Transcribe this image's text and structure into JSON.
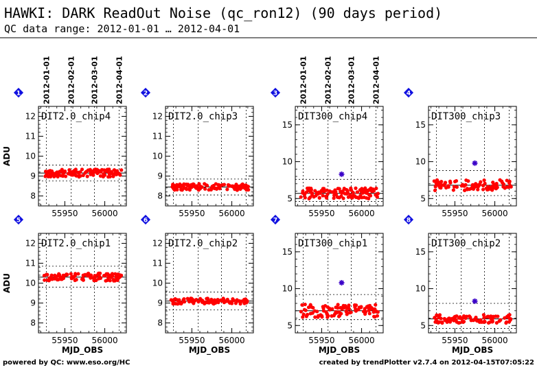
{
  "header": {
    "title": "HAWKI: DARK ReadOut Noise (qc_ron12) (90 days period)",
    "subtitle": "QC data range: 2012-01-01 … 2012-04-01"
  },
  "footer": {
    "left": "powered by QC: www.eso.org/HC",
    "right": "created by trendPlotter v2.7.4 on 2012-04-15T07:05:22"
  },
  "axes": {
    "ylabel": "ADU",
    "xlabel": "MJD_OBS",
    "date_ticks": [
      {
        "mjd": 55927,
        "label": "2012-01-01"
      },
      {
        "mjd": 55958,
        "label": "2012-02-01"
      },
      {
        "mjd": 55987,
        "label": "2012-03-01"
      },
      {
        "mjd": 56018,
        "label": "2012-04-01"
      }
    ],
    "x_ticks": [
      55950,
      56000
    ],
    "xlim": [
      55917,
      56027
    ]
  },
  "colors": {
    "points": "#ff0000",
    "outlier": "#3a00c8",
    "badge": "#1010e0",
    "ink": "#000000"
  },
  "chart_data": [
    {
      "type": "scatter",
      "panel": 1,
      "label": "DIT2.0_chip4",
      "ylim": [
        7.5,
        12.5
      ],
      "y_ticks": [
        8,
        9,
        10,
        11,
        12
      ],
      "median": 9.15,
      "band": [
        8.75,
        9.55
      ],
      "seed": 11,
      "scatter": 0.12,
      "outliers": []
    },
    {
      "type": "scatter",
      "panel": 2,
      "label": "DIT2.0_chip3",
      "ylim": [
        7.5,
        12.5
      ],
      "y_ticks": [
        8,
        9,
        10,
        11,
        12
      ],
      "median": 8.45,
      "band": [
        8.05,
        8.85
      ],
      "seed": 23,
      "scatter": 0.1,
      "outliers": []
    },
    {
      "type": "scatter",
      "panel": 3,
      "label": "DIT300_chip4",
      "ylim": [
        4.0,
        17.5
      ],
      "y_ticks": [
        5,
        10,
        15
      ],
      "median": 5.7,
      "band": [
        4.6,
        7.6
      ],
      "seed": 37,
      "scatter": 0.45,
      "outliers": [
        {
          "x": 55975,
          "y": 8.3
        }
      ]
    },
    {
      "type": "scatter",
      "panel": 4,
      "label": "DIT300_chip3",
      "ylim": [
        4.0,
        17.5
      ],
      "y_ticks": [
        5,
        10,
        15
      ],
      "median": 6.8,
      "band": [
        5.4,
        8.8
      ],
      "seed": 41,
      "scatter": 0.45,
      "outliers": [
        {
          "x": 55975,
          "y": 9.8
        }
      ]
    },
    {
      "type": "scatter",
      "panel": 5,
      "label": "DIT2.0_chip1",
      "ylim": [
        7.5,
        12.5
      ],
      "y_ticks": [
        8,
        9,
        10,
        11,
        12
      ],
      "median": 10.3,
      "band": [
        9.8,
        10.85
      ],
      "seed": 53,
      "scatter": 0.12,
      "outliers": []
    },
    {
      "type": "scatter",
      "panel": 6,
      "label": "DIT2.0_chip2",
      "ylim": [
        7.5,
        12.5
      ],
      "y_ticks": [
        8,
        9,
        10,
        11,
        12
      ],
      "median": 9.1,
      "band": [
        8.65,
        9.55
      ],
      "seed": 67,
      "scatter": 0.09,
      "outliers": []
    },
    {
      "type": "scatter",
      "panel": 7,
      "label": "DIT300_chip1",
      "ylim": [
        4.0,
        17.5
      ],
      "y_ticks": [
        5,
        10,
        15
      ],
      "median": 7.0,
      "band": [
        5.8,
        9.2
      ],
      "seed": 71,
      "scatter": 0.55,
      "outliers": [
        {
          "x": 55975,
          "y": 10.8
        }
      ]
    },
    {
      "type": "scatter",
      "panel": 8,
      "label": "DIT300_chip2",
      "ylim": [
        4.0,
        17.5
      ],
      "y_ticks": [
        5,
        10,
        15
      ],
      "median": 5.9,
      "band": [
        4.6,
        8.0
      ],
      "seed": 83,
      "scatter": 0.35,
      "outliers": [
        {
          "x": 55975,
          "y": 8.3
        }
      ]
    }
  ]
}
